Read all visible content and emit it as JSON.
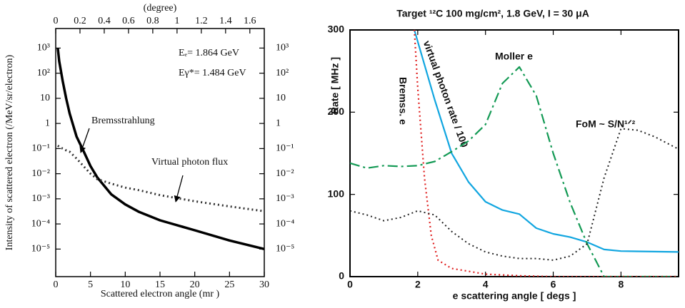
{
  "chart_data": [
    {
      "type": "line",
      "title": "(degree)",
      "x_label": "Scattered electron angle (mr )",
      "y_label": "Intensity of scattered electron (/MeV/sr/electron)",
      "annotations": [
        "Eₑ= 1.864 GeV",
        "Eγ*= 1.484 GeV"
      ],
      "yscale": "log",
      "y_labels_right": true,
      "x": [
        0.3,
        0.5,
        1,
        1.5,
        2,
        3,
        4,
        5,
        6,
        8,
        10,
        12,
        15,
        20,
        25,
        30
      ],
      "series": [
        {
          "name": "Bremsstrahlung",
          "color": "#000000",
          "linestyle": "solid",
          "linewidth": 3.5,
          "values": [
            1000,
            300,
            50,
            10,
            2.5,
            0.3,
            0.08,
            0.02,
            0.007,
            0.0015,
            0.0006,
            0.0003,
            0.00014,
            5.6e-05,
            2.2e-05,
            1e-05
          ]
        },
        {
          "name": "Virtual photon flux",
          "color": "#333333",
          "linestyle": "dotted",
          "linewidth": 3,
          "values": [
            0.13,
            0.12,
            0.1,
            0.085,
            0.075,
            0.04,
            0.02,
            0.01,
            0.006,
            0.004,
            0.0028,
            0.0022,
            0.0014,
            0.0008,
            0.0005,
            0.00032
          ]
        }
      ],
      "xlim": [
        0,
        30
      ],
      "xticks": [
        0,
        5,
        10,
        15,
        20,
        25,
        30
      ],
      "x2lim": [
        0,
        1.719
      ],
      "x2ticks": [
        0,
        0.2,
        0.4,
        0.6,
        0.8,
        1,
        1.2,
        1.4,
        1.6
      ],
      "ylim": [
        8e-07,
        6000
      ],
      "yticks": [
        {
          "value": 1000,
          "label": "10³"
        },
        {
          "value": 100,
          "label": "10²"
        },
        10,
        1,
        {
          "value": 0.1,
          "label": "10⁻¹"
        },
        {
          "value": 0.01,
          "label": "10⁻²"
        },
        {
          "value": 0.001,
          "label": "10⁻³"
        },
        {
          "value": 0.0001,
          "label": "10⁻⁴"
        },
        {
          "value": 1e-05,
          "label": "10⁻⁵"
        }
      ]
    },
    {
      "type": "line",
      "title": "Target ¹²C  100 mg/cm², 1.8 GeV, I = 30 μA",
      "x_label": "e  scattering angle [ degs ]",
      "y_label": "Rate [ MHz ]",
      "yscale": "linear",
      "y_labels_right": false,
      "series": [
        {
          "name": "virtual photon rate / 100",
          "color": "#12a6e0",
          "linestyle": "solid",
          "linewidth": 2.2,
          "x": [
            1.9,
            2.5,
            3,
            3.5,
            4,
            4.5,
            5,
            5.5,
            6,
            6.5,
            7,
            7.5,
            8,
            9.7
          ],
          "values": [
            300,
            215,
            150,
            115,
            91,
            81,
            76,
            59,
            52,
            48,
            42,
            33,
            31,
            30
          ]
        },
        {
          "name": "Moller e",
          "color": "#149a55",
          "linestyle": "dashdot",
          "linewidth": 2.2,
          "x": [
            0,
            0.5,
            1,
            1.5,
            2,
            2.5,
            3,
            3.5,
            4,
            4.5,
            5,
            5.5,
            6,
            6.5,
            7,
            7.5,
            8,
            9.7
          ],
          "values": [
            138,
            132,
            135,
            134,
            135,
            140,
            152,
            165,
            185,
            235,
            255,
            220,
            150,
            90,
            40,
            0,
            0,
            0
          ]
        },
        {
          "name": "Bremss. e",
          "color": "#e02020",
          "linestyle": "dotted",
          "linewidth": 2.2,
          "x": [
            1.9,
            2,
            2.2,
            2.4,
            2.6,
            3,
            4,
            5,
            6,
            9.7
          ],
          "values": [
            300,
            230,
            120,
            50,
            20,
            10,
            3,
            1,
            0,
            0
          ]
        },
        {
          "name": "FoM ~ S/N¹ᐟ²",
          "color": "#222222",
          "linestyle": "dotted",
          "linewidth": 2,
          "x": [
            0,
            0.5,
            1,
            1.5,
            2,
            2.5,
            3,
            3.5,
            4,
            4.5,
            5,
            5.5,
            6,
            6.5,
            7,
            7.5,
            8,
            8.5,
            9,
            9.7
          ],
          "values": [
            80,
            75,
            68,
            72,
            80,
            75,
            55,
            40,
            30,
            25,
            22,
            22,
            20,
            25,
            40,
            120,
            180,
            178,
            170,
            155
          ]
        }
      ],
      "xlim": [
        0,
        9.7
      ],
      "xticks": [
        0,
        2,
        4,
        6,
        8
      ],
      "ylim": [
        0,
        300
      ],
      "yticks": [
        0,
        100,
        200,
        300
      ]
    }
  ]
}
